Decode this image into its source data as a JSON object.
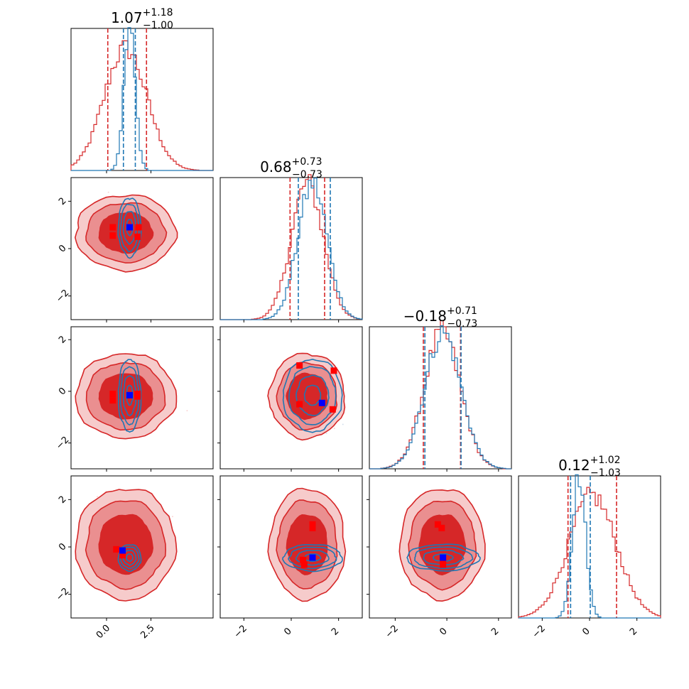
{
  "colors": {
    "red": "#d62728",
    "blue": "#1f77b4",
    "red_mid": "#ea8f90",
    "red_light": "#f6cbcb",
    "marker_red": "#ff0000",
    "marker_blue": "#0000ff"
  },
  "chart_data": {
    "type": "corner",
    "grid": false,
    "parameters": [
      {
        "range": [
          -2.0,
          6.0
        ],
        "ticks": [
          0.0,
          2.5
        ],
        "tick_labels": [
          "0.0",
          "2.5"
        ],
        "title": {
          "main": "1.07",
          "plus": "+1.18",
          "minus": "−1.00"
        }
      },
      {
        "range": [
          -3.0,
          3.0
        ],
        "ticks": [
          -2,
          0,
          2
        ],
        "tick_labels": [
          "−2",
          "0",
          "2"
        ],
        "title": {
          "main": "0.68",
          "plus": "+0.73",
          "minus": "−0.73"
        }
      },
      {
        "range": [
          -3.0,
          2.5
        ],
        "ticks": [
          -2,
          0,
          2
        ],
        "tick_labels": [
          "−2",
          "0",
          "2"
        ],
        "title": {
          "main": "−0.18",
          "plus": "+0.71",
          "minus": "−0.73"
        }
      },
      {
        "range": [
          -3.0,
          3.0
        ],
        "ticks": [
          -2,
          0,
          2
        ],
        "tick_labels": [
          "−2",
          "0",
          "2"
        ],
        "title": {
          "main": "0.12",
          "plus": "+1.02",
          "minus": "−1.03"
        }
      }
    ],
    "series": [
      {
        "name": "red",
        "color": "#d62728",
        "means": [
          1.07,
          0.68,
          -0.18,
          0.12
        ],
        "quantiles": [
          [
            0.07,
            2.25
          ],
          [
            -0.05,
            1.41
          ],
          [
            -0.91,
            0.53
          ],
          [
            -0.91,
            1.14
          ]
        ],
        "hist_widths": [
          1.2,
          0.68,
          0.7,
          1.0
        ]
      },
      {
        "name": "blue",
        "color": "#1f77b4",
        "means": [
          1.3,
          0.9,
          -0.15,
          -0.45
        ],
        "quantiles": [
          [
            0.95,
            1.62
          ],
          [
            0.3,
            1.65
          ],
          [
            -0.85,
            0.55
          ],
          [
            -0.8,
            0.03
          ]
        ],
        "hist_widths": [
          0.32,
          0.62,
          0.7,
          0.28
        ]
      }
    ],
    "markers": {
      "red": [
        [
          [
            0.35,
            0.9
          ],
          [
            0.35,
            0.55
          ],
          [
            1.8,
            0.9
          ],
          [
            1.75,
            0.5
          ]
        ],
        [
          [
            0.35,
            -0.1
          ],
          [
            0.35,
            -0.35
          ],
          [
            1.75,
            -0.1
          ],
          [
            1.75,
            -0.2
          ]
        ],
        [
          [
            0.35,
            1.0
          ],
          [
            0.35,
            -0.5
          ],
          [
            1.8,
            0.8
          ],
          [
            1.75,
            -0.7
          ]
        ],
        [
          [
            0.55,
            -0.1
          ],
          [
            0.9,
            -0.35
          ]
        ],
        [
          [
            0.9,
            0.95
          ],
          [
            0.9,
            0.8
          ],
          [
            0.5,
            -0.55
          ],
          [
            0.55,
            -0.75
          ]
        ],
        [
          [
            -0.35,
            0.95
          ],
          [
            -0.2,
            0.8
          ],
          [
            -0.15,
            -0.55
          ],
          [
            -0.15,
            -0.75
          ]
        ]
      ],
      "blue": [
        [
          1.3,
          0.9
        ],
        [
          1.3,
          -0.15
        ],
        [
          1.3,
          -0.45
        ],
        [
          0.9,
          -0.15
        ],
        [
          0.9,
          -0.45
        ],
        [
          -0.15,
          -0.45
        ]
      ]
    }
  }
}
